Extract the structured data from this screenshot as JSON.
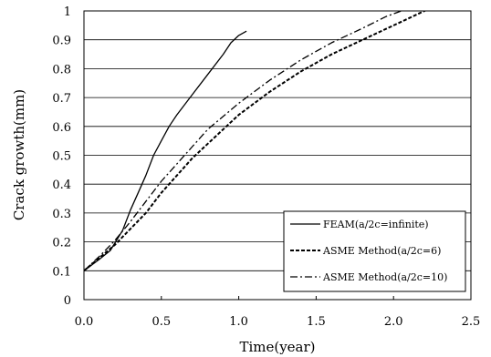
{
  "chart_data": {
    "type": "line",
    "xlabel": "Time(year)",
    "ylabel": "Crack growth(mm)",
    "xlim": [
      0,
      2.5
    ],
    "ylim": [
      0,
      1
    ],
    "x_ticks": [
      "0.0",
      "0.5",
      "1.0",
      "1.5",
      "2.0",
      "2.5"
    ],
    "y_ticks": [
      "0",
      "0.1",
      "0.2",
      "0.3",
      "0.4",
      "0.5",
      "0.6",
      "0.7",
      "0.8",
      "0.9",
      "1"
    ],
    "grid": "horizontal",
    "legend_position": "bottom-right",
    "series": [
      {
        "name": "FEAM(a/2c=infinite)",
        "style": "solid",
        "color": "#000000",
        "points": [
          [
            0.0,
            0.1
          ],
          [
            0.1,
            0.14
          ],
          [
            0.17,
            0.17
          ],
          [
            0.25,
            0.24
          ],
          [
            0.3,
            0.31
          ],
          [
            0.35,
            0.37
          ],
          [
            0.4,
            0.43
          ],
          [
            0.45,
            0.5
          ],
          [
            0.5,
            0.55
          ],
          [
            0.55,
            0.6
          ],
          [
            0.6,
            0.64
          ],
          [
            0.7,
            0.71
          ],
          [
            0.8,
            0.78
          ],
          [
            0.9,
            0.85
          ],
          [
            0.95,
            0.89
          ],
          [
            1.0,
            0.915
          ],
          [
            1.05,
            0.93
          ]
        ]
      },
      {
        "name": "ASME Method(a/2c=6)",
        "style": "dashed",
        "color": "#000000",
        "points": [
          [
            0.0,
            0.1
          ],
          [
            0.1,
            0.145
          ],
          [
            0.2,
            0.19
          ],
          [
            0.3,
            0.245
          ],
          [
            0.4,
            0.3
          ],
          [
            0.5,
            0.37
          ],
          [
            0.6,
            0.43
          ],
          [
            0.7,
            0.49
          ],
          [
            0.8,
            0.54
          ],
          [
            1.0,
            0.64
          ],
          [
            1.2,
            0.72
          ],
          [
            1.4,
            0.79
          ],
          [
            1.6,
            0.85
          ],
          [
            1.8,
            0.9
          ],
          [
            2.0,
            0.95
          ],
          [
            2.2,
            1.0
          ],
          [
            2.25,
            1.01
          ]
        ]
      },
      {
        "name": "ASME Method(a/2c=10)",
        "style": "dash-dot",
        "color": "#000000",
        "points": [
          [
            0.0,
            0.1
          ],
          [
            0.1,
            0.15
          ],
          [
            0.2,
            0.205
          ],
          [
            0.3,
            0.27
          ],
          [
            0.4,
            0.34
          ],
          [
            0.5,
            0.41
          ],
          [
            0.6,
            0.47
          ],
          [
            0.7,
            0.53
          ],
          [
            0.8,
            0.59
          ],
          [
            1.0,
            0.68
          ],
          [
            1.2,
            0.76
          ],
          [
            1.4,
            0.83
          ],
          [
            1.6,
            0.89
          ],
          [
            1.8,
            0.94
          ],
          [
            1.95,
            0.98
          ],
          [
            2.05,
            1.0
          ]
        ]
      }
    ]
  }
}
